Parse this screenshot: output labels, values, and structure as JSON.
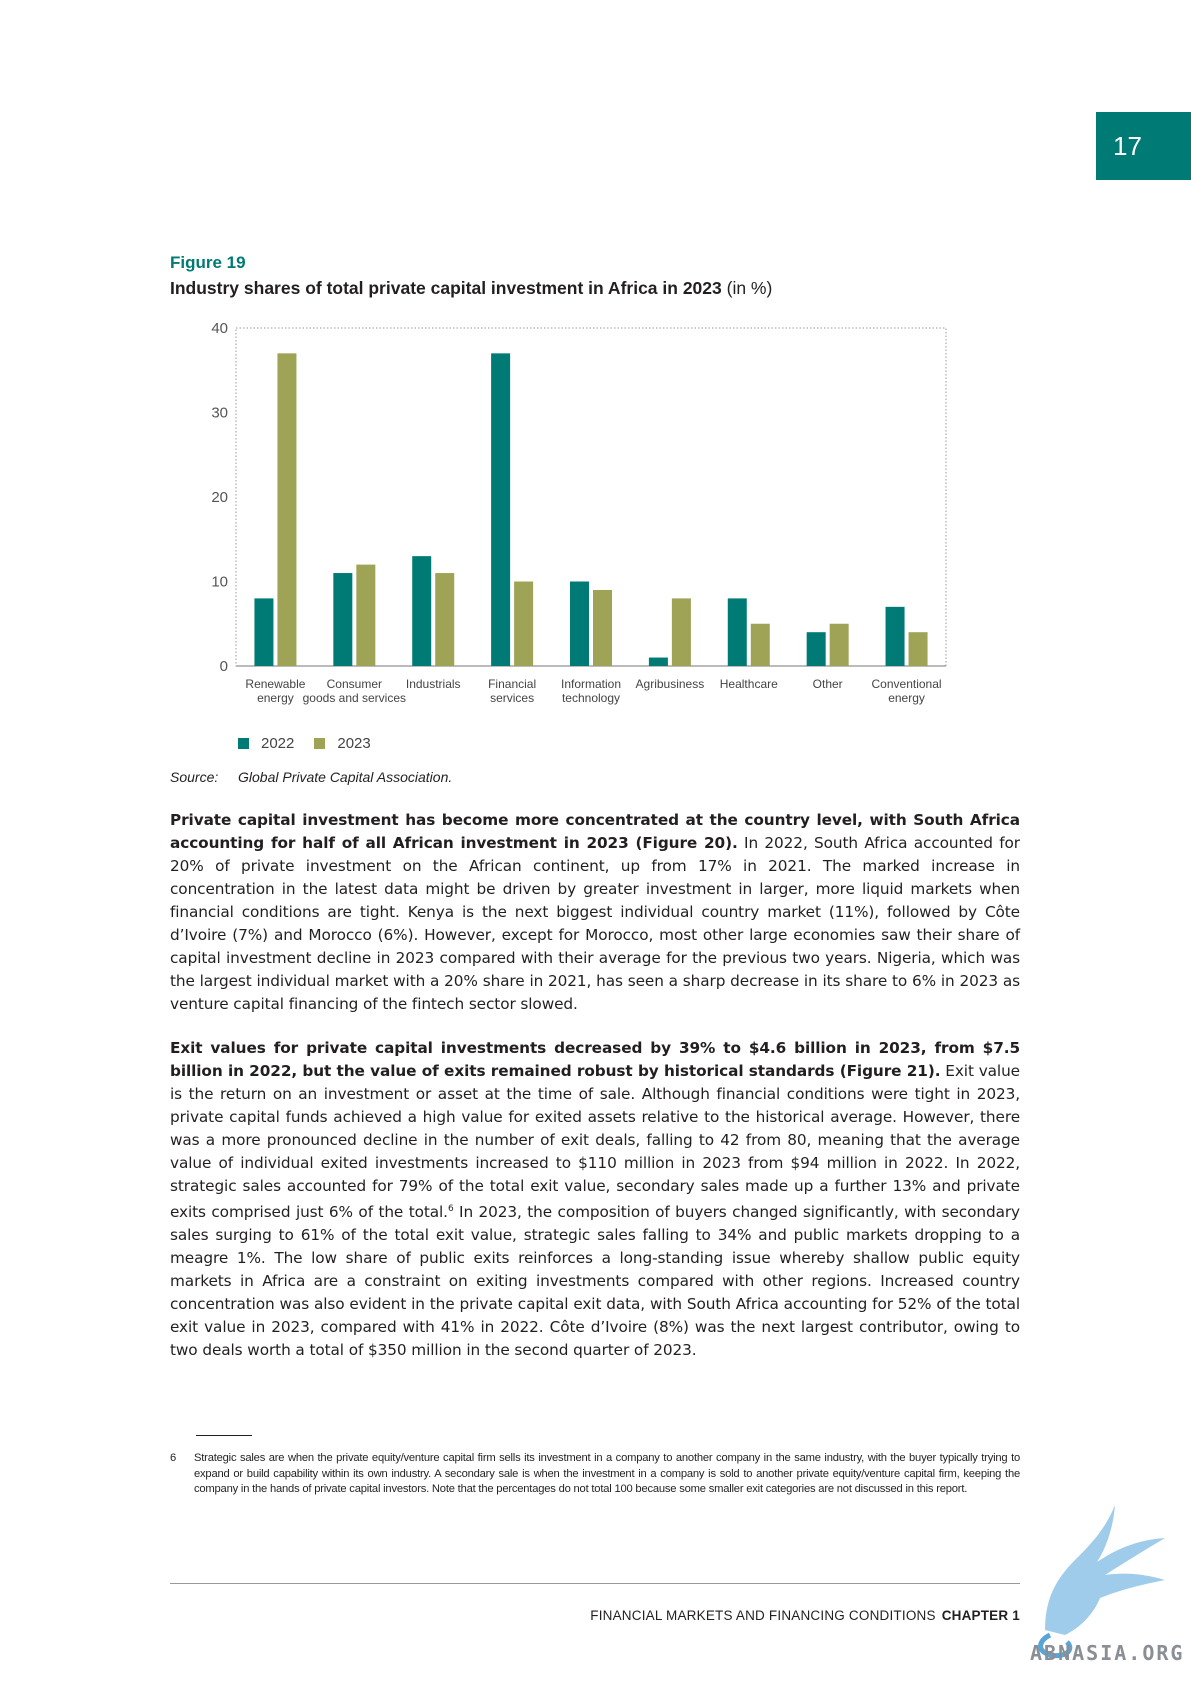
{
  "page": {
    "number": "17"
  },
  "figure": {
    "label": "Figure 19",
    "title_bold": "Industry shares of total private capital investment in Africa in 2023",
    "title_suffix": " (in %)",
    "source_key": "Source:",
    "source_value": "Global Private Capital Association."
  },
  "chart_data": {
    "type": "bar",
    "title": "Industry shares of total private capital investment in Africa in 2023 (in %)",
    "categories": [
      [
        "Renewable",
        "energy"
      ],
      [
        "Consumer",
        "goods and services"
      ],
      [
        "Industrials"
      ],
      [
        "Financial",
        "services"
      ],
      [
        "Information",
        "technology"
      ],
      [
        "Agribusiness"
      ],
      [
        "Healthcare"
      ],
      [
        "Other"
      ],
      [
        "Conventional",
        "energy"
      ]
    ],
    "series": [
      {
        "name": "2022",
        "color": "#007a74",
        "values": [
          8,
          11,
          13,
          37,
          10,
          1,
          8,
          4,
          7
        ]
      },
      {
        "name": "2023",
        "color": "#9ea356",
        "values": [
          37,
          12,
          11,
          10,
          9,
          8,
          5,
          5,
          4
        ]
      }
    ],
    "ylim": [
      0,
      40
    ],
    "yticks": [
      "0",
      "10",
      "20",
      "30",
      "40"
    ],
    "legend_position": "bottom-left",
    "grid": false
  },
  "body": {
    "p1_bold": "Private capital investment has become more concentrated at the country level, with South Africa accounting for half of all African investment in 2023 (Figure 20).",
    "p1_text": " In 2022, South Africa accounted for 20% of private investment on the African continent, up from 17% in 2021. The marked increase in concentration in the latest data might be driven by greater investment in larger, more liquid markets when financial conditions are tight. Kenya is the next biggest individual country market (11%), followed by Côte d’Ivoire (7%) and Morocco (6%). However, except for Morocco, most other large economies saw their share of capital investment decline in 2023 compared with their average for the previous two years. Nigeria, which was the largest individual market with a 20% share in 2021, has seen a sharp decrease in its share to 6% in 2023 as venture capital financing of the fintech sector slowed.",
    "p2_bold": "Exit values for private capital investments decreased by 39% to $4.6 billion in 2023, from $7.5 billion in 2022, but the value of exits remained robust by historical standards (Figure 21).",
    "p2_text_a": " Exit value is the return on an investment or asset at the time of sale. Although financial conditions were tight in 2023, private capital funds achieved a high value for exited assets relative to the historical average. However, there was a more pronounced decline in the number of exit deals, falling to 42 from 80, meaning that the average value of individual exited investments increased to $110 million in 2023 from $94 million in 2022. In 2022, strategic sales accounted for 79% of the total exit value, secondary sales made up a further 13% and private exits comprised just 6% of the total.",
    "p2_ref": "6",
    "p2_text_b": " In 2023, the composition of buyers changed significantly, with secondary sales surging to 61% of the total exit value, strategic sales falling to 34% and public markets dropping to a meagre 1%. The low share of public exits reinforces a long-standing issue whereby shallow public equity markets in Africa are a constraint on exiting investments compared with other regions. Increased country concentration was also evident in the private capital exit data, with South Africa accounting for 52% of the total exit value in 2023, compared with 41% in 2022. Côte d’Ivoire (8%) was the next largest contributor, owing to two deals worth a total of $350 million in the second quarter of 2023."
  },
  "footnote": {
    "number": "6",
    "text": "Strategic sales are when the private equity/venture capital firm sells its investment in a company to another company in the same industry, with the buyer typically trying to expand or build capability within its own industry. A secondary sale is when the investment in a company is sold to another private equity/venture capital firm, keeping the company in the hands of private capital investors. Note that the percentages do not total 100 because some smaller exit categories are not discussed in this report."
  },
  "footer": {
    "section": "FINANCIAL MARKETS AND FINANCING CONDITIONS",
    "chapter": "CHAPTER 1"
  },
  "watermark": {
    "text": "ABNASIA.ORG"
  }
}
